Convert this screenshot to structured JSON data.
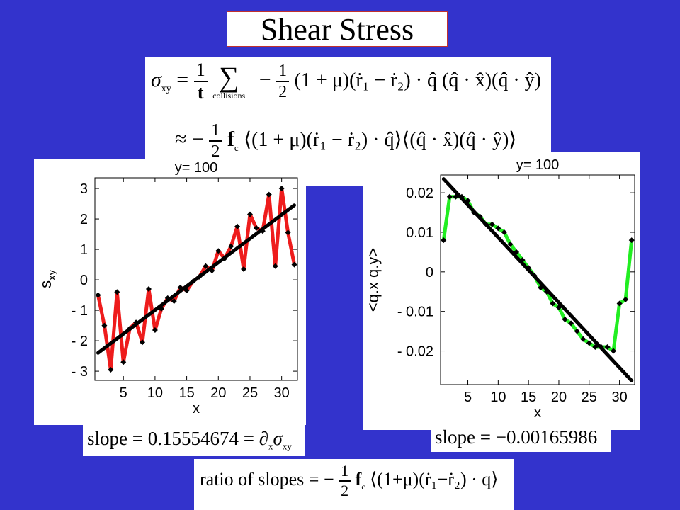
{
  "slide": {
    "title": "Shear Stress",
    "colors": {
      "background": "#3333cc",
      "red_line": "#ee1c1c",
      "green_line": "#22ee22",
      "fit_line": "#000000",
      "border": "#c03030"
    },
    "equations": {
      "line1": {
        "lhs_symbol": "σ",
        "lhs_sub": "xy",
        "eq": "=",
        "frac_num": "1",
        "frac_den": "t",
        "sum": "∑",
        "sum_sub": "collisions",
        "minus": "−",
        "half_num": "1",
        "half_den": "2",
        "body": "(1 + μ)(ṙ₁ − ṙ₂) · q̂ (q̂ · x̂)(q̂ · ŷ)"
      },
      "line2": {
        "approx": "≈ −",
        "half_num": "1",
        "half_den": "2",
        "f": "f",
        "f_sub": "c",
        "body": "⟨(1 + μ)(ṙ₁ − ṙ₂) · q̂⟩⟨(q̂ · x̂)(q̂ · ŷ)⟩"
      }
    },
    "slope_left": {
      "prefix": "slope = 0.15554674 = ∂",
      "sub_x": "x",
      "sigma": "σ",
      "sub_xy": "xy"
    },
    "slope_right": {
      "text": "slope = −0.00165986"
    },
    "ratio": {
      "prefix": "ratio of slopes = −",
      "half_num": "1",
      "half_den": "2",
      "f": "f",
      "f_sub": "c",
      "body": "⟨(1+μ)(ṙ₁−ṙ₂) · q⟩"
    }
  },
  "chart_data": [
    {
      "type": "line",
      "title": "y= 100",
      "xlabel": "x",
      "ylabel": "s",
      "ylabel_sub": "xy",
      "xlim": [
        0.5,
        32.5
      ],
      "ylim": [
        -3.3,
        3.35
      ],
      "xticks": [
        5,
        10,
        15,
        20,
        25,
        30
      ],
      "yticks": [
        3,
        2,
        1,
        0,
        -1,
        -2,
        -3
      ],
      "ytick_labels": [
        "3",
        "2",
        "1",
        "0",
        "- 1",
        "- 2",
        "- 3"
      ],
      "series": [
        {
          "style": "data",
          "x": [
            1,
            2,
            3,
            4,
            5,
            6,
            7,
            8,
            9,
            10,
            11,
            12,
            13,
            14,
            15,
            16,
            17,
            18,
            19,
            20,
            21,
            22,
            23,
            24,
            25,
            26,
            27,
            28,
            29,
            30,
            31,
            32
          ],
          "y": [
            -0.5,
            -1.5,
            -2.95,
            -0.4,
            -2.7,
            -1.6,
            -1.4,
            -2.05,
            -0.3,
            -1.65,
            -0.95,
            -0.6,
            -0.7,
            -0.25,
            -0.35,
            -0.05,
            0.1,
            0.45,
            0.3,
            0.95,
            0.7,
            1.1,
            1.75,
            0.35,
            2.15,
            1.7,
            1.6,
            2.8,
            0.45,
            3.0,
            1.55,
            0.5
          ]
        },
        {
          "style": "fit",
          "x": [
            1,
            32
          ],
          "y": [
            -2.4,
            2.45
          ]
        }
      ]
    },
    {
      "type": "line",
      "title": "y= 100",
      "xlabel": "x",
      "ylabel": "<q.x q.y>",
      "xlim": [
        0.5,
        32.5
      ],
      "ylim": [
        -0.0285,
        0.0245
      ],
      "xticks": [
        5,
        10,
        15,
        20,
        25,
        30
      ],
      "yticks": [
        0.02,
        0.01,
        0,
        -0.01,
        -0.02
      ],
      "ytick_labels": [
        "0.02",
        "0.01",
        "0",
        "- 0.01",
        "- 0.02"
      ],
      "series": [
        {
          "style": "data",
          "x": [
            1,
            2,
            3,
            4,
            5,
            6,
            7,
            8,
            9,
            10,
            11,
            12,
            13,
            14,
            15,
            16,
            17,
            18,
            19,
            20,
            21,
            22,
            23,
            24,
            25,
            26,
            27,
            28,
            29,
            30,
            31,
            32
          ],
          "y": [
            0.008,
            0.019,
            0.019,
            0.019,
            0.018,
            0.015,
            0.014,
            0.012,
            0.012,
            0.011,
            0.01,
            0.007,
            0.005,
            0.003,
            0.001,
            -0.001,
            -0.004,
            -0.005,
            -0.008,
            -0.009,
            -0.012,
            -0.013,
            -0.015,
            -0.017,
            -0.018,
            -0.019,
            -0.019,
            -0.019,
            -0.02,
            -0.008,
            -0.007,
            0.008
          ]
        },
        {
          "style": "fit",
          "x": [
            1,
            32
          ],
          "y": [
            0.0235,
            -0.0275
          ]
        }
      ]
    }
  ]
}
